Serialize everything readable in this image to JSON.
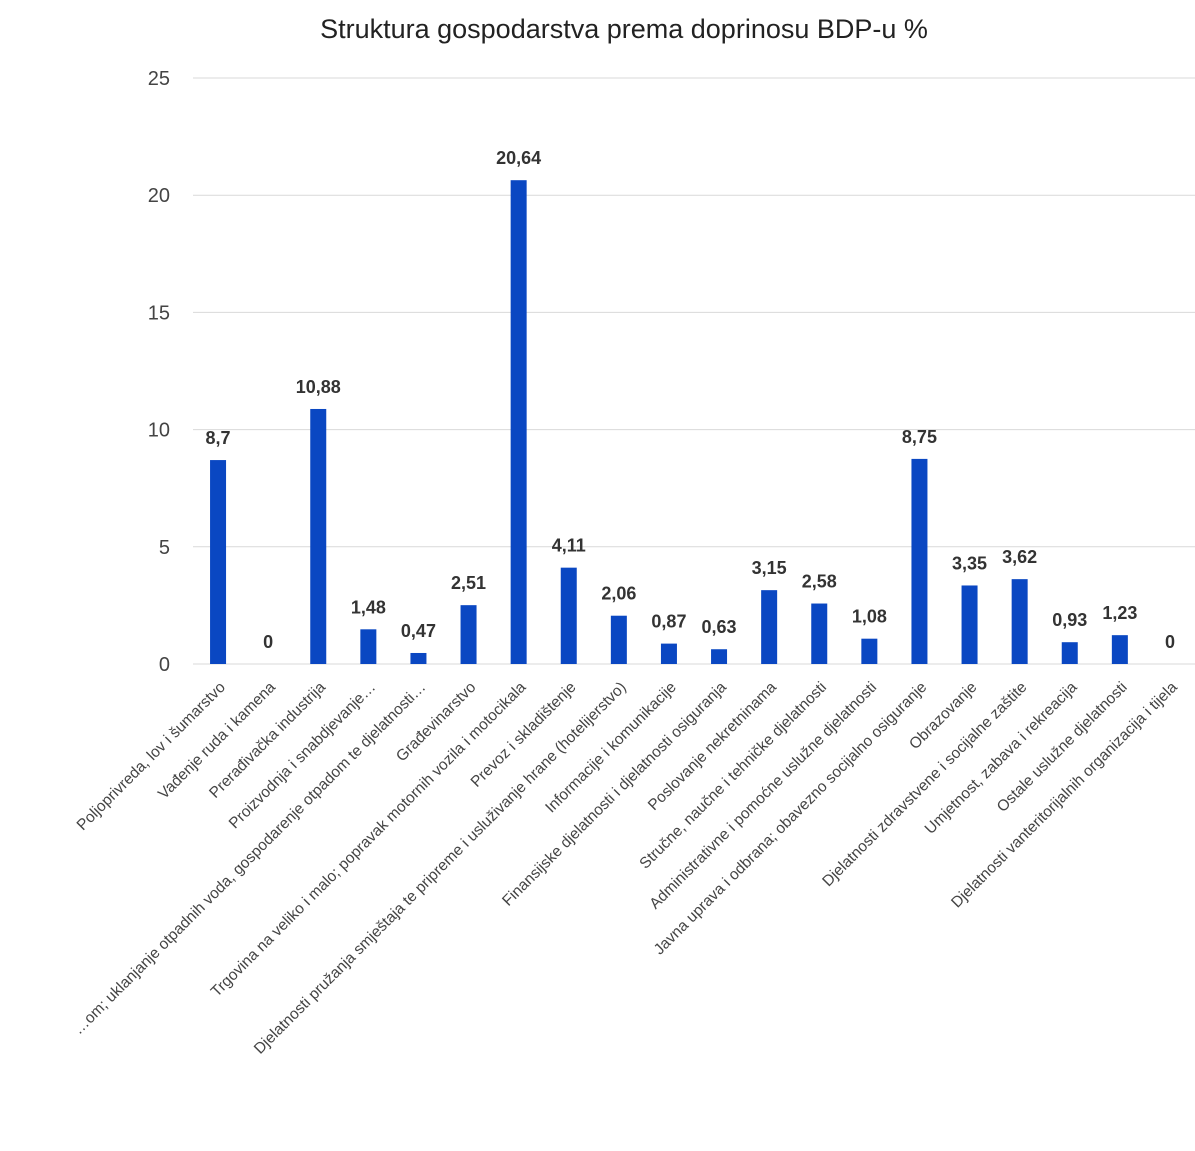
{
  "chart_data": {
    "type": "bar",
    "title": "Struktura gospodarstva prema doprinosu BDP-u %",
    "xlabel": "",
    "ylabel": "",
    "ylim": [
      0,
      25
    ],
    "yticks": [
      0,
      5,
      10,
      15,
      20,
      25
    ],
    "grid": true,
    "legend": "none",
    "bar_color": "#0a47c2",
    "categories": [
      "Poljoprivreda, lov i šumarstvo",
      "Vađenje ruda i kamena",
      "Prerađivačka industrija",
      "Proizvodnja i snabdjevanje…",
      "…om; uklanjanje otpadnih voda, gospodarenje otpadom te djelatnosti…",
      "Građevinarstvo",
      "Trgovina na veliko i malo; popravak motornih vozila i motocikala",
      "Prevoz i skladištenje",
      "Djelatnosti pružanja smještaja te pripreme i usluživanje hrane (hotelijerstvo)",
      "Informacije i komunikacije",
      "Finansijske djelatnosti i djelatnosti osiguranja",
      "Poslovanje nekretninama",
      "Stručne, naučne i tehničke djelatnosti",
      "Administrativne i pomoćne uslužne djelatnosti",
      "Javna uprava i odbrana; obavezno socijalno osiguranje",
      "Obrazovanje",
      "Djelatnosti zdravstvene i socijalne zaštite",
      "Umjetnost, zabava i rekreacija",
      "Ostale uslužne djelatnosti",
      "Djelatnosti vanteritorijalnih organizacija i tijela"
    ],
    "values": [
      8.7,
      0,
      10.88,
      1.48,
      0.47,
      2.51,
      20.64,
      4.11,
      2.06,
      0.87,
      0.63,
      3.15,
      2.58,
      1.08,
      8.75,
      3.35,
      3.62,
      0.93,
      1.23,
      0
    ],
    "data_labels": [
      "8,7",
      "0",
      "10,88",
      "1,48",
      "0,47",
      "2,51",
      "20,64",
      "4,11",
      "2,06",
      "0,87",
      "0,63",
      "3,15",
      "2,58",
      "1,08",
      "8,75",
      "3,35",
      "3,62",
      "0,93",
      "1,23",
      "0"
    ]
  }
}
